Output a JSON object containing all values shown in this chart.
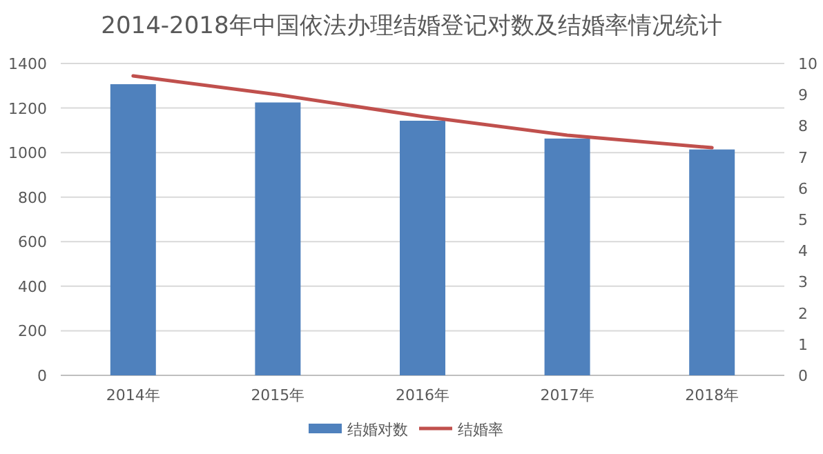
{
  "chart_data": {
    "type": "bar",
    "title": "2014-2018年中国依法办理结婚登记对数及结婚率情况统计",
    "categories": [
      "2014年",
      "2015年",
      "2016年",
      "2017年",
      "2018年"
    ],
    "series": [
      {
        "name": "结婚对数",
        "color": "#4f81bd",
        "values": [
          1307,
          1225,
          1143,
          1063,
          1014
        ]
      },
      {
        "name": "结婚率",
        "type": "line",
        "axis": "y2",
        "color": "#c0504d",
        "values": [
          9.6,
          9.0,
          8.3,
          7.7,
          7.3
        ]
      }
    ],
    "ylim": [
      0,
      1400
    ],
    "yticks": [
      0,
      200,
      400,
      600,
      800,
      1000,
      1200,
      1400
    ],
    "y2lim": [
      0,
      10
    ],
    "y2ticks": [
      0,
      1,
      2,
      3,
      4,
      5,
      6,
      7,
      8,
      9,
      10
    ],
    "grid": "y",
    "legend": "bottom",
    "marker": "none"
  }
}
